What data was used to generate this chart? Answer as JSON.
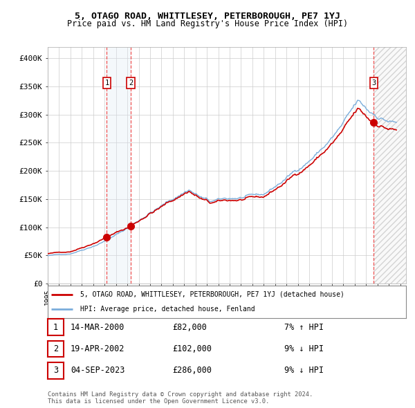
{
  "title": "5, OTAGO ROAD, WHITTLESEY, PETERBOROUGH, PE7 1YJ",
  "subtitle": "Price paid vs. HM Land Registry's House Price Index (HPI)",
  "ylabel_ticks": [
    "£0",
    "£50K",
    "£100K",
    "£150K",
    "£200K",
    "£250K",
    "£300K",
    "£350K",
    "£400K"
  ],
  "ytick_values": [
    0,
    50000,
    100000,
    150000,
    200000,
    250000,
    300000,
    350000,
    400000
  ],
  "ylim": [
    0,
    420000
  ],
  "xlim_start": 1995.0,
  "xlim_end": 2026.5,
  "sale_color": "#cc0000",
  "hpi_color": "#7aaddb",
  "background_color": "#ffffff",
  "grid_color": "#cccccc",
  "transactions": [
    {
      "date": 2000.2,
      "price": 82000,
      "label": "1"
    },
    {
      "date": 2002.3,
      "price": 102000,
      "label": "2"
    },
    {
      "date": 2023.67,
      "price": 286000,
      "label": "3"
    }
  ],
  "annotation_rows": [
    {
      "num": "1",
      "date": "14-MAR-2000",
      "price": "£82,000",
      "note": "7% ↑ HPI"
    },
    {
      "num": "2",
      "date": "19-APR-2002",
      "price": "£102,000",
      "note": "9% ↓ HPI"
    },
    {
      "num": "3",
      "date": "04-SEP-2023",
      "price": "£286,000",
      "note": "9% ↓ HPI"
    }
  ],
  "legend_line1": "5, OTAGO ROAD, WHITTLESEY, PETERBOROUGH, PE7 1YJ (detached house)",
  "legend_line2": "HPI: Average price, detached house, Fenland",
  "footnote": "Contains HM Land Registry data © Crown copyright and database right 2024.\nThis data is licensed under the Open Government Licence v3.0.",
  "shaded_region_color": "#dde8f5",
  "hatch_color": "#dddddd"
}
